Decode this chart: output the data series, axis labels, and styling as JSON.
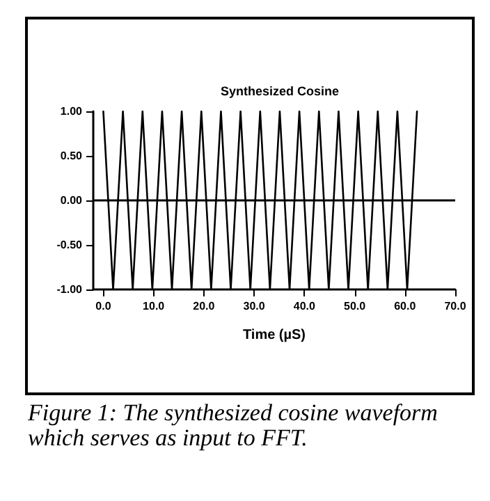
{
  "chart_data": {
    "type": "line",
    "title": "Synthesized Cosine",
    "xlabel": "Time (µS)",
    "annotations": [
      "Figure 1: The synthesized cosine waveform which serves as input to FFT."
    ],
    "x": [
      0,
      1.95,
      3.9,
      5.85,
      7.8,
      9.75,
      11.7,
      13.65,
      15.6,
      17.55,
      19.5,
      21.45,
      23.4,
      25.35,
      27.3,
      29.25,
      31.2,
      33.15,
      35.1,
      37.05,
      39,
      40.95,
      42.9,
      44.85,
      46.8,
      48.75,
      50.7,
      52.65,
      54.6,
      56.55,
      58.5,
      60.45,
      62.4
    ],
    "series": [
      {
        "color": "#000000",
        "values": [
          1,
          -1,
          1,
          -1,
          1,
          -1,
          1,
          -1,
          1,
          -1,
          1,
          -1,
          1,
          -1,
          1,
          -1,
          1,
          -1,
          1,
          -1,
          1,
          -1,
          1,
          -1,
          1,
          -1,
          1,
          -1,
          1,
          -1,
          1,
          -1,
          1
        ]
      }
    ],
    "xlim": [
      -2,
      70
    ],
    "ylim": [
      -1,
      1
    ],
    "xticks": [
      {
        "value": 0,
        "label": "0.0"
      },
      {
        "value": 10,
        "label": "10.0"
      },
      {
        "value": 20,
        "label": "20.0"
      },
      {
        "value": 30,
        "label": "30.0"
      },
      {
        "value": 40,
        "label": "40.0"
      },
      {
        "value": 50,
        "label": "50.0"
      },
      {
        "value": 60,
        "label": "60.0"
      },
      {
        "value": 70,
        "label": "70.0"
      }
    ],
    "yticks": [
      {
        "value": -1,
        "label": "-1.00"
      },
      {
        "value": -0.5,
        "label": "-0.50"
      },
      {
        "value": 0,
        "label": "0.00"
      },
      {
        "value": 0.5,
        "label": "0.50"
      },
      {
        "value": 1,
        "label": "1.00"
      }
    ],
    "ref_lines": [
      {
        "axis": "y",
        "value": 0,
        "color": "#000000"
      }
    ],
    "grid": false,
    "marker": "none",
    "line_style": "solid"
  }
}
